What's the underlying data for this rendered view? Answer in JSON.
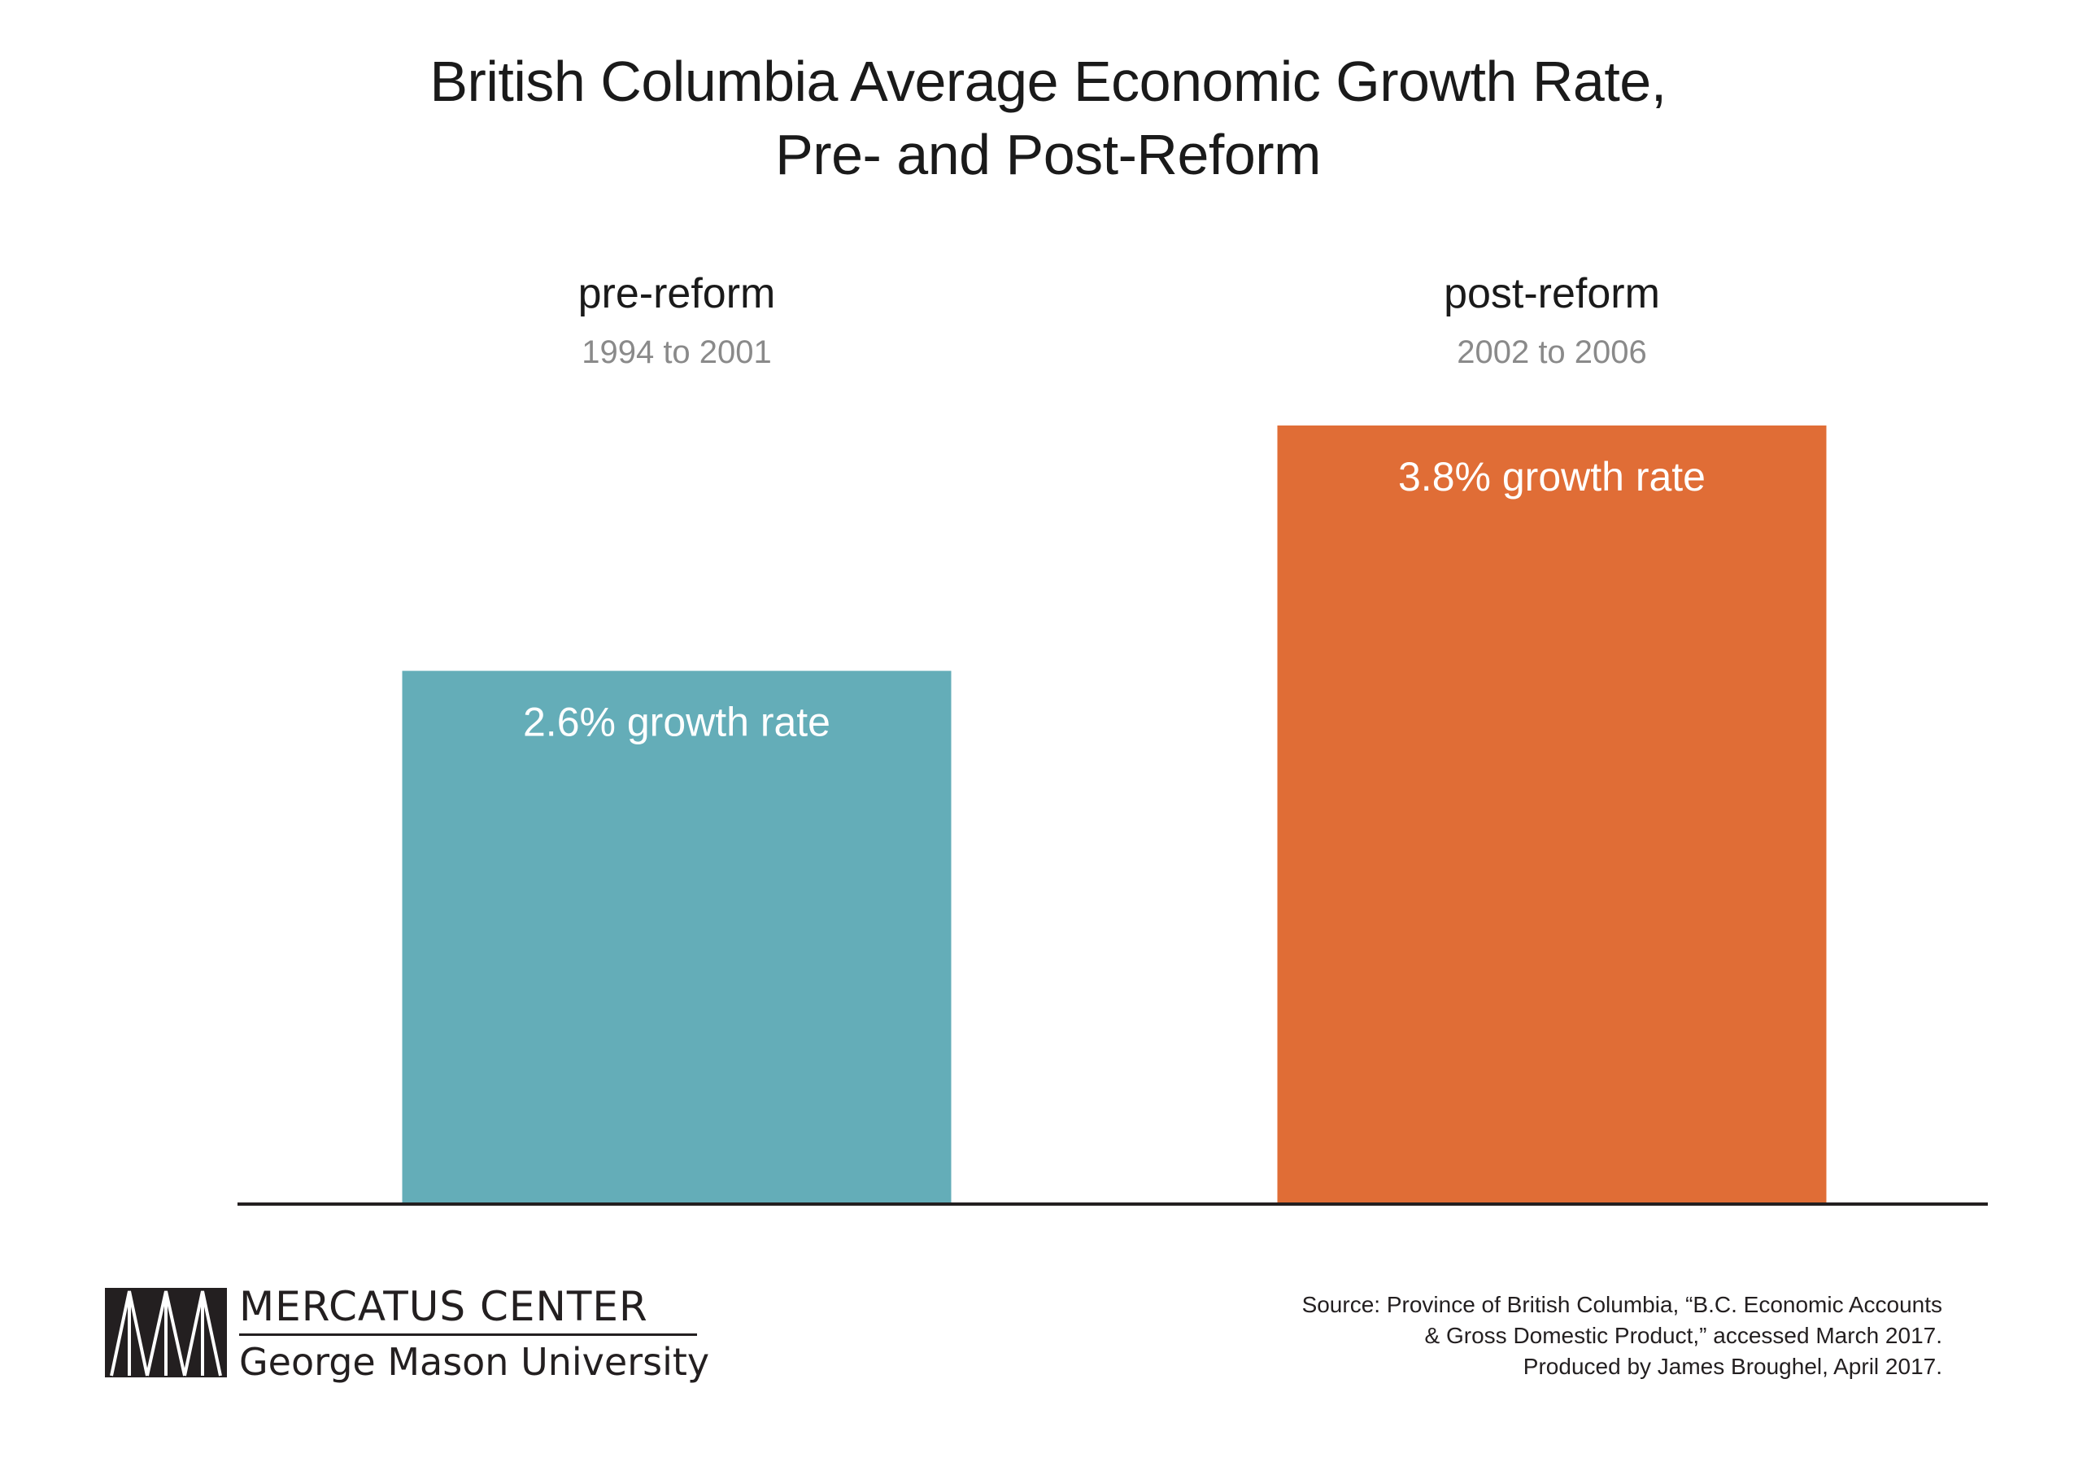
{
  "chart_data": {
    "type": "bar",
    "title_lines": [
      "British Columbia Average Economic Growth Rate,",
      "Pre- and Post-Reform"
    ],
    "categories": [
      "pre-reform",
      "post-reform"
    ],
    "periods": [
      "1994 to 2001",
      "2002 to 2006"
    ],
    "values": [
      2.6,
      3.8
    ],
    "value_labels": [
      "2.6% growth rate",
      "3.8% growth rate"
    ],
    "colors": [
      "#64adb8",
      "#e06d36"
    ],
    "unit": "%",
    "ylim": [
      0,
      3.8
    ],
    "grid": false,
    "legend": "none",
    "xlabel": "",
    "ylabel": ""
  },
  "logo": {
    "name": "MERCATUS CENTER",
    "subtitle": "George Mason University"
  },
  "source": {
    "lines": [
      "Source: Province of British Columbia, “B.C. Economic Accounts",
      "& Gross Domestic Product,” accessed March 2017.",
      "Produced by James Broughel, April 2017."
    ]
  }
}
